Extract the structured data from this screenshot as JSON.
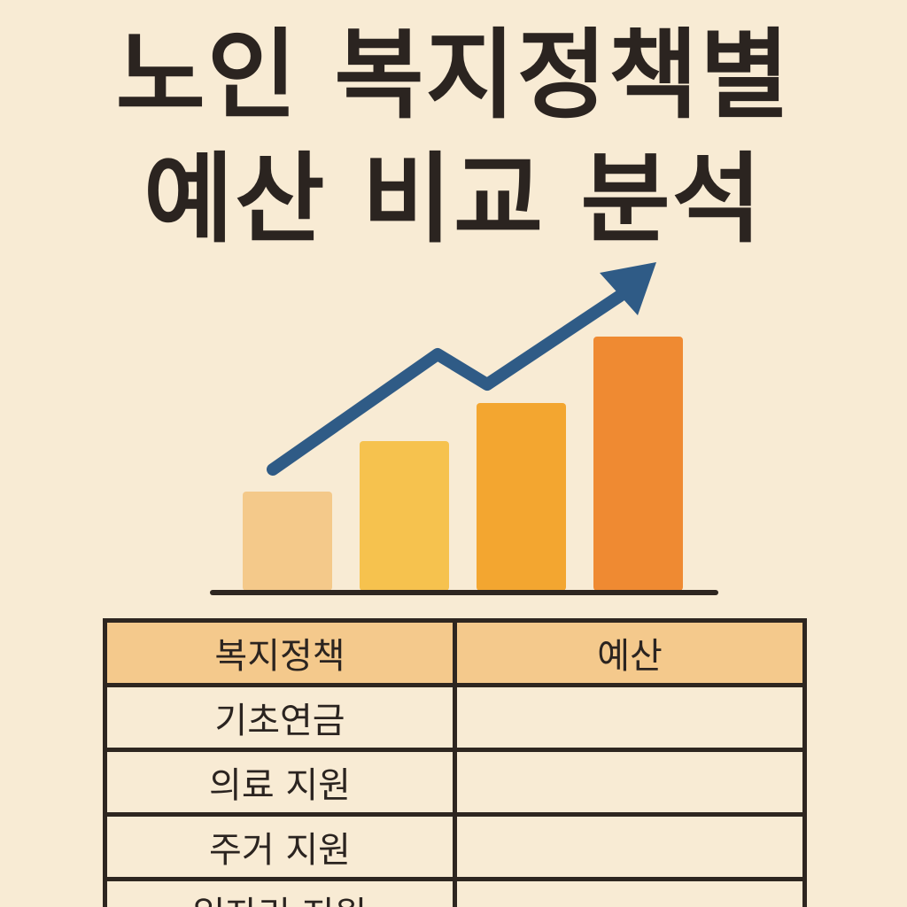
{
  "title": {
    "line1": "노인 복지정책별",
    "line2": "예산 비교 분석"
  },
  "colors": {
    "background": "#f8ebd4",
    "text": "#2b2420",
    "trend_arrow": "#2f5b86",
    "header_fill": "#f4c98c",
    "bars": [
      "#f4c98a",
      "#f6c24e",
      "#f3a630",
      "#ef8a32"
    ]
  },
  "graphic": {
    "bar_levels": [
      0.39,
      0.59,
      0.74,
      1.0
    ],
    "trend_icon": "rising-trend-arrow-icon"
  },
  "table": {
    "headers": {
      "policy": "복지정책",
      "budget": "예산"
    },
    "rows": [
      {
        "policy": "기초연금",
        "budget": ""
      },
      {
        "policy": "의료 지원",
        "budget": ""
      },
      {
        "policy": "주거 지원",
        "budget": ""
      },
      {
        "policy": "일자리 지원",
        "budget": ""
      }
    ]
  }
}
